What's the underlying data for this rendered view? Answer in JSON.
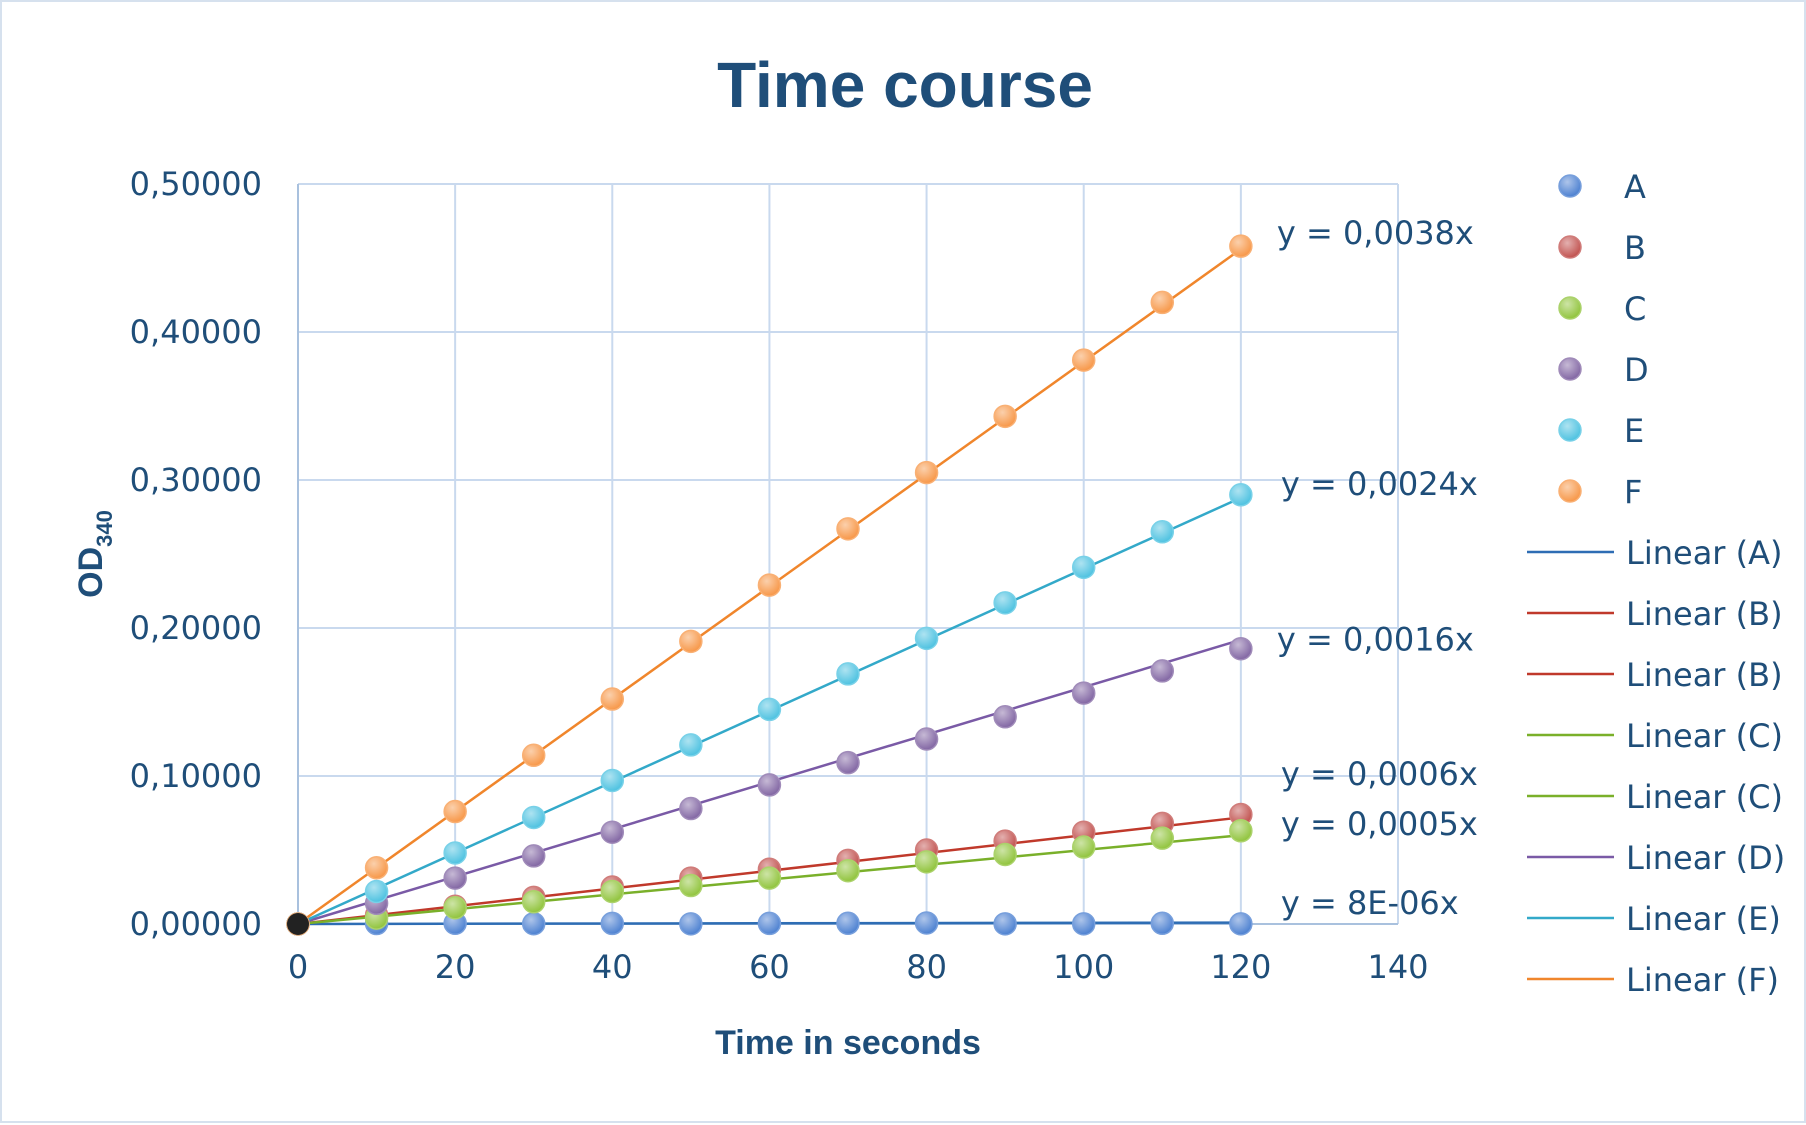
{
  "chart_data": {
    "type": "scatter",
    "title": "Time course",
    "xlabel": "Time in seconds",
    "ylabel_main": "OD",
    "ylabel_sub": "340",
    "xlim": [
      0,
      140
    ],
    "ylim": [
      0,
      0.5
    ],
    "x_ticks": [
      0,
      20,
      40,
      60,
      80,
      100,
      120,
      140
    ],
    "x_tick_labels": [
      "0",
      "20",
      "40",
      "60",
      "80",
      "100",
      "120",
      "140"
    ],
    "y_ticks": [
      0,
      0.1,
      0.2,
      0.3,
      0.4,
      0.5
    ],
    "y_tick_labels": [
      "0,00000",
      "0,10000",
      "0,20000",
      "0,30000",
      "0,40000",
      "0,50000"
    ],
    "grid": true,
    "legend_position": "right",
    "x": [
      0,
      10,
      20,
      30,
      40,
      50,
      60,
      70,
      80,
      90,
      100,
      110,
      120
    ],
    "series": [
      {
        "name": "A",
        "color": "#4a7fd0",
        "values": [
          0,
          0.0003,
          0.0005,
          0.0002,
          0.0004,
          0.0001,
          0.0004,
          0.0005,
          0.0007,
          0.0001,
          0.0001,
          0.0005,
          0.0001
        ],
        "slope": 8e-06,
        "equation": "y = 8E-06x"
      },
      {
        "name": "B",
        "color": "#c0504d",
        "values": [
          0,
          0.006,
          0.012,
          0.018,
          0.025,
          0.031,
          0.037,
          0.043,
          0.05,
          0.056,
          0.062,
          0.068,
          0.074
        ],
        "slope": 0.0006,
        "equation": "y = 0,0006x"
      },
      {
        "name": "C",
        "color": "#8fc33a",
        "values": [
          0,
          0.004,
          0.011,
          0.015,
          0.022,
          0.026,
          0.031,
          0.036,
          0.042,
          0.047,
          0.052,
          0.058,
          0.063
        ],
        "slope": 0.0005,
        "equation": "y = 0,0005x"
      },
      {
        "name": "D",
        "color": "#8064a2",
        "values": [
          0,
          0.014,
          0.031,
          0.046,
          0.062,
          0.078,
          0.094,
          0.109,
          0.125,
          0.14,
          0.156,
          0.171,
          0.186
        ],
        "slope": 0.0016,
        "equation": "y = 0,0016x"
      },
      {
        "name": "E",
        "color": "#4bc1e0",
        "values": [
          0,
          0.022,
          0.048,
          0.072,
          0.097,
          0.121,
          0.145,
          0.169,
          0.193,
          0.217,
          0.241,
          0.265,
          0.29
        ],
        "slope": 0.0024,
        "equation": "y = 0,0024x"
      },
      {
        "name": "F",
        "color": "#f79646",
        "values": [
          0,
          0.038,
          0.076,
          0.114,
          0.152,
          0.191,
          0.229,
          0.267,
          0.305,
          0.343,
          0.381,
          0.42,
          0.458
        ],
        "slope": 0.0038,
        "equation": "y = 0,0038x"
      }
    ],
    "trendlines": [
      {
        "name": "Linear (A)",
        "series": "A",
        "color": "#2e6db4"
      },
      {
        "name": "Linear (B)",
        "series": "B",
        "color": "#c0392b"
      },
      {
        "name": "Linear (B)",
        "series": "B",
        "color": "#c0392b"
      },
      {
        "name": "Linear (C)",
        "series": "C",
        "color": "#7ab02a"
      },
      {
        "name": "Linear (C)",
        "series": "C",
        "color": "#7ab02a"
      },
      {
        "name": "Linear (D)",
        "series": "D",
        "color": "#7a5aa6"
      },
      {
        "name": "Linear (E)",
        "series": "E",
        "color": "#33a9c9"
      },
      {
        "name": "Linear (F)",
        "series": "F",
        "color": "#f0862c"
      }
    ]
  }
}
